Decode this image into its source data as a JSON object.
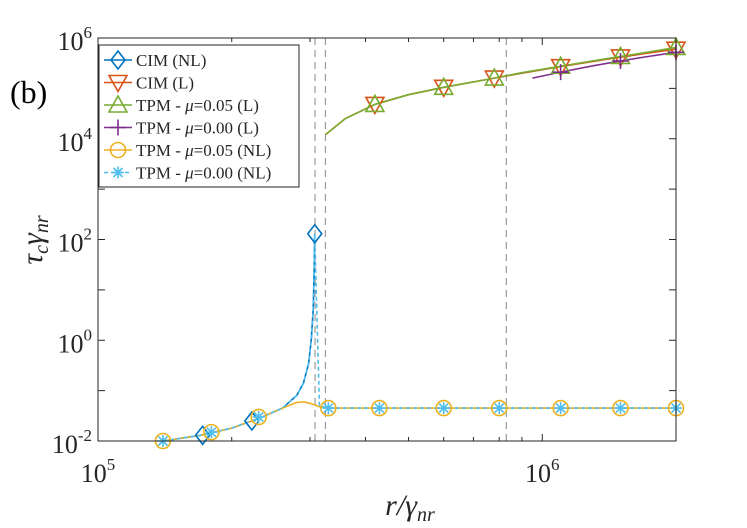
{
  "chart_data": {
    "type": "line",
    "panel_label": "(b)",
    "xlabel": {
      "main": "r/γ",
      "sub": "nr"
    },
    "ylabel": {
      "main": "τ",
      "sub1": "c",
      "mid": "γ",
      "sub2": "nr"
    },
    "xscale": "log",
    "yscale": "log",
    "xlim": [
      100000,
      2000000
    ],
    "ylim": [
      0.01,
      1000000
    ],
    "x_ticks": [
      {
        "value": 100000,
        "base": "10",
        "exp": "5"
      },
      {
        "value": 1000000,
        "base": "10",
        "exp": "6"
      }
    ],
    "y_ticks": [
      {
        "value": 0.01,
        "base": "10",
        "exp": "-2"
      },
      {
        "value": 1,
        "base": "10",
        "exp": "0"
      },
      {
        "value": 100,
        "base": "10",
        "exp": "2"
      },
      {
        "value": 10000,
        "base": "10",
        "exp": "4"
      },
      {
        "value": 1000000,
        "base": "10",
        "exp": "6"
      }
    ],
    "vertical_dashed_lines_x": [
      308000,
      325000,
      830000
    ],
    "grid": false,
    "legend_position": "top-left",
    "series": [
      {
        "legend": {
          "pre": "CIM (NL)",
          "mu": "",
          "post": ""
        },
        "color": "#0072BD",
        "marker": "diamond",
        "dash": "",
        "x": [
          140000,
          170000,
          200000,
          230000,
          260000,
          280000,
          290000,
          298000,
          302000,
          305000,
          306500,
          307500
        ],
        "y": [
          0.01,
          0.013,
          0.018,
          0.028,
          0.045,
          0.08,
          0.14,
          0.35,
          1.0,
          4.0,
          20,
          130
        ],
        "marker_x": [
          172000,
          222000,
          307500
        ],
        "marker_y": [
          0.013,
          0.025,
          130
        ]
      },
      {
        "legend": {
          "pre": "CIM (L)",
          "mu": "",
          "post": ""
        },
        "color": "#D95319",
        "marker": "triangle-down",
        "dash": "",
        "x": [
          325000,
          360000,
          420000,
          500000,
          600000,
          750000,
          900000,
          1100000,
          1400000,
          1700000,
          2000000
        ],
        "y": [
          12000,
          25000,
          48000,
          75000,
          105000,
          150000,
          200000,
          270000,
          380000,
          490000,
          600000
        ],
        "marker_x": [
          420000,
          600000,
          780000,
          1100000,
          1500000,
          2000000
        ],
        "marker_y": [
          48000,
          105000,
          160000,
          270000,
          420000,
          600000
        ]
      },
      {
        "legend": {
          "pre": "TPM - ",
          "mu": "μ",
          "post": "=0.05 (L)"
        },
        "color": "#77AC30",
        "marker": "triangle-up",
        "dash": "",
        "x": [
          325000,
          360000,
          420000,
          500000,
          600000,
          750000,
          900000,
          1100000,
          1400000,
          1700000,
          2000000
        ],
        "y": [
          12000,
          25000,
          48000,
          75000,
          105000,
          150000,
          205000,
          275000,
          390000,
          510000,
          650000
        ],
        "marker_x": [
          420000,
          600000,
          780000,
          1100000,
          1500000,
          2000000
        ],
        "marker_y": [
          48000,
          105000,
          160000,
          275000,
          430000,
          650000
        ]
      },
      {
        "legend": {
          "pre": "TPM - ",
          "mu": "μ",
          "post": "=0.00 (L)"
        },
        "color": "#7E2F8E",
        "marker": "plus",
        "dash": "",
        "x": [
          950000,
          1100000,
          1300000,
          1500000,
          1700000,
          2000000
        ],
        "y": [
          160000,
          210000,
          280000,
          350000,
          420000,
          520000
        ],
        "marker_x": [
          1100000,
          1500000,
          2000000
        ],
        "marker_y": [
          210000,
          350000,
          520000
        ]
      },
      {
        "legend": {
          "pre": "TPM - ",
          "mu": "μ",
          "post": "=0.05 (NL)"
        },
        "color": "#EDB120",
        "marker": "circle",
        "dash": "",
        "x": [
          140000,
          170000,
          200000,
          230000,
          260000,
          280000,
          290000,
          300000,
          315000,
          330000,
          400000,
          600000,
          1000000,
          2000000
        ],
        "y": [
          0.01,
          0.013,
          0.018,
          0.028,
          0.045,
          0.058,
          0.06,
          0.056,
          0.048,
          0.045,
          0.045,
          0.045,
          0.045,
          0.045
        ],
        "marker_x": [
          140000,
          180000,
          230000,
          330000,
          430000,
          600000,
          800000,
          1100000,
          1500000,
          2000000
        ],
        "marker_y": [
          0.01,
          0.015,
          0.03,
          0.045,
          0.045,
          0.045,
          0.045,
          0.045,
          0.045,
          0.045
        ]
      },
      {
        "legend": {
          "pre": "TPM - ",
          "mu": "μ",
          "post": "=0.00 (NL)"
        },
        "color": "#4DBEEE",
        "marker": "asterisk",
        "dash": "4 3",
        "x": [
          140000,
          170000,
          200000,
          230000,
          260000,
          280000,
          290000,
          298000,
          302000,
          305000,
          306500,
          307500,
          315000,
          330000,
          400000,
          600000,
          1000000,
          2000000
        ],
        "y": [
          0.01,
          0.013,
          0.018,
          0.028,
          0.045,
          0.08,
          0.14,
          0.35,
          1.0,
          4.0,
          20,
          130,
          0.05,
          0.045,
          0.045,
          0.045,
          0.045,
          0.045
        ],
        "marker_x": [
          140000,
          180000,
          230000,
          330000,
          430000,
          600000,
          800000,
          1100000,
          1500000,
          2000000
        ],
        "marker_y": [
          0.01,
          0.015,
          0.03,
          0.045,
          0.045,
          0.045,
          0.045,
          0.045,
          0.045,
          0.045
        ]
      }
    ]
  }
}
